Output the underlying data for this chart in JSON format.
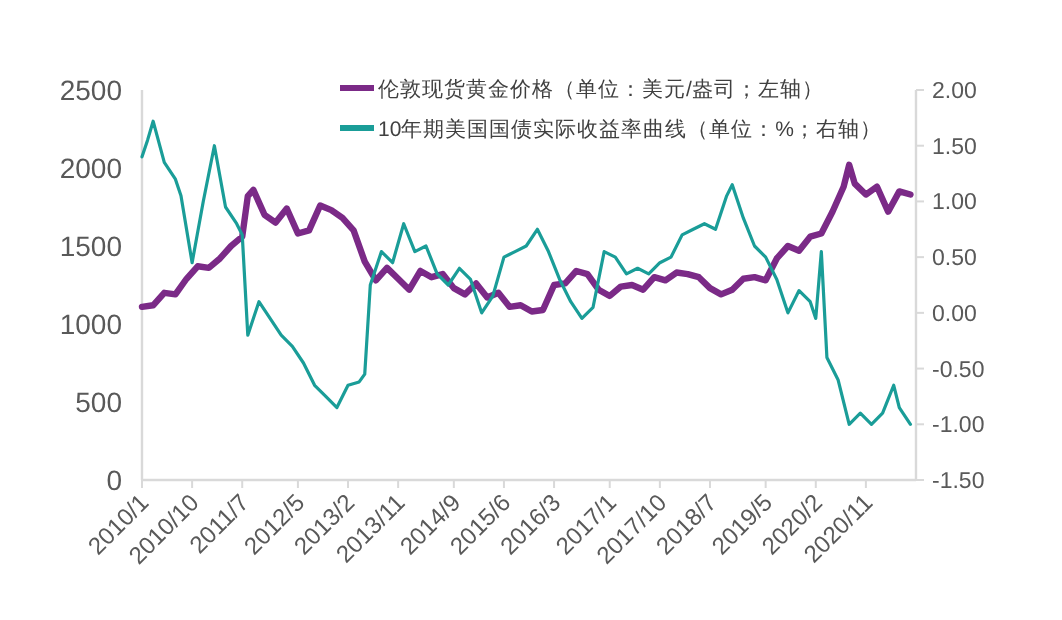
{
  "chart_data": {
    "type": "line",
    "legend": "top",
    "grid": false,
    "line_style": "solid",
    "xlim": [
      "2010-01",
      "2021-08"
    ],
    "xticks": [
      {
        "value": "2010-01",
        "label": "2010/1"
      },
      {
        "value": "2010-10",
        "label": "2010/10"
      },
      {
        "value": "2011-07",
        "label": "2011/7"
      },
      {
        "value": "2012-05",
        "label": "2012/5"
      },
      {
        "value": "2013-02",
        "label": "2013/2"
      },
      {
        "value": "2013-11",
        "label": "2013/11"
      },
      {
        "value": "2014-09",
        "label": "2014/9"
      },
      {
        "value": "2015-06",
        "label": "2015/6"
      },
      {
        "value": "2016-03",
        "label": "2016/3"
      },
      {
        "value": "2017-01",
        "label": "2017/1"
      },
      {
        "value": "2017-10",
        "label": "2017/10"
      },
      {
        "value": "2018-07",
        "label": "2018/7"
      },
      {
        "value": "2019-05",
        "label": "2019/5"
      },
      {
        "value": "2020-02",
        "label": "2020/2"
      },
      {
        "value": "2020-11",
        "label": "2020/11"
      }
    ],
    "ylim": [
      0,
      2500
    ],
    "yticks": [
      0,
      500,
      1000,
      1500,
      2000,
      2500
    ],
    "y2lim": [
      -1.5,
      2
    ],
    "y2ticks": [
      {
        "value": -1.5,
        "label": "-1.50"
      },
      {
        "value": -1,
        "label": "-1.00"
      },
      {
        "value": -0.5,
        "label": "-0.50"
      },
      {
        "value": 0,
        "label": "0.00"
      },
      {
        "value": 0.5,
        "label": "0.50"
      },
      {
        "value": 1,
        "label": "1.00"
      },
      {
        "value": 1.5,
        "label": "1.50"
      },
      {
        "value": 2,
        "label": "2.00"
      }
    ],
    "series": [
      {
        "name": "伦敦现货黄金价格（单位：美元/盎司；左轴）",
        "color": "#7b2a87",
        "axis": "y",
        "x": [
          "2010-01",
          "2010-03",
          "2010-05",
          "2010-07",
          "2010-09",
          "2010-11",
          "2011-01",
          "2011-03",
          "2011-05",
          "2011-07",
          "2011-08",
          "2011-09",
          "2011-11",
          "2012-01",
          "2012-03",
          "2012-05",
          "2012-07",
          "2012-09",
          "2012-11",
          "2013-01",
          "2013-03",
          "2013-05",
          "2013-07",
          "2013-09",
          "2013-11",
          "2014-01",
          "2014-03",
          "2014-05",
          "2014-07",
          "2014-09",
          "2014-11",
          "2015-01",
          "2015-03",
          "2015-05",
          "2015-07",
          "2015-09",
          "2015-11",
          "2016-01",
          "2016-03",
          "2016-05",
          "2016-07",
          "2016-09",
          "2016-11",
          "2017-01",
          "2017-03",
          "2017-05",
          "2017-07",
          "2017-09",
          "2017-11",
          "2018-01",
          "2018-03",
          "2018-05",
          "2018-07",
          "2018-09",
          "2018-11",
          "2019-01",
          "2019-03",
          "2019-05",
          "2019-07",
          "2019-09",
          "2019-11",
          "2020-01",
          "2020-03",
          "2020-05",
          "2020-07",
          "2020-08",
          "2020-09",
          "2020-11",
          "2021-01",
          "2021-03",
          "2021-05",
          "2021-07"
        ],
        "values": [
          1110,
          1120,
          1200,
          1190,
          1290,
          1370,
          1360,
          1420,
          1500,
          1560,
          1820,
          1860,
          1700,
          1650,
          1740,
          1580,
          1600,
          1760,
          1730,
          1680,
          1600,
          1400,
          1280,
          1360,
          1290,
          1220,
          1340,
          1300,
          1320,
          1230,
          1190,
          1260,
          1170,
          1200,
          1110,
          1120,
          1080,
          1090,
          1250,
          1260,
          1340,
          1320,
          1220,
          1180,
          1240,
          1250,
          1220,
          1300,
          1280,
          1330,
          1320,
          1300,
          1230,
          1190,
          1220,
          1290,
          1300,
          1280,
          1420,
          1500,
          1470,
          1560,
          1580,
          1720,
          1880,
          2020,
          1900,
          1830,
          1880,
          1720,
          1850,
          1830
        ]
      },
      {
        "name": "10年期美国国债实际收益率曲线（单位：%；右轴）",
        "color": "#1a9d98",
        "axis": "y2",
        "x": [
          "2010-01",
          "2010-02",
          "2010-03",
          "2010-05",
          "2010-07",
          "2010-08",
          "2010-10",
          "2010-12",
          "2011-02",
          "2011-04",
          "2011-06",
          "2011-07",
          "2011-08",
          "2011-10",
          "2011-12",
          "2012-02",
          "2012-04",
          "2012-06",
          "2012-08",
          "2012-10",
          "2012-12",
          "2013-02",
          "2013-04",
          "2013-05",
          "2013-06",
          "2013-08",
          "2013-10",
          "2013-12",
          "2014-02",
          "2014-04",
          "2014-06",
          "2014-08",
          "2014-10",
          "2014-12",
          "2015-02",
          "2015-04",
          "2015-06",
          "2015-08",
          "2015-10",
          "2015-12",
          "2016-02",
          "2016-04",
          "2016-06",
          "2016-08",
          "2016-10",
          "2016-12",
          "2017-02",
          "2017-04",
          "2017-06",
          "2017-08",
          "2017-10",
          "2017-12",
          "2018-02",
          "2018-04",
          "2018-06",
          "2018-08",
          "2018-10",
          "2018-11",
          "2019-01",
          "2019-03",
          "2019-05",
          "2019-07",
          "2019-09",
          "2019-11",
          "2020-01",
          "2020-02",
          "2020-03",
          "2020-04",
          "2020-06",
          "2020-08",
          "2020-10",
          "2020-12",
          "2021-02",
          "2021-04",
          "2021-05",
          "2021-07"
        ],
        "values": [
          1.4,
          1.55,
          1.72,
          1.35,
          1.2,
          1.05,
          0.45,
          1.0,
          1.5,
          0.95,
          0.8,
          0.7,
          -0.2,
          0.1,
          -0.05,
          -0.2,
          -0.3,
          -0.45,
          -0.65,
          -0.75,
          -0.85,
          -0.65,
          -0.62,
          -0.55,
          0.25,
          0.55,
          0.45,
          0.8,
          0.55,
          0.6,
          0.35,
          0.25,
          0.4,
          0.3,
          0.0,
          0.15,
          0.5,
          0.55,
          0.6,
          0.75,
          0.55,
          0.3,
          0.1,
          -0.05,
          0.05,
          0.55,
          0.5,
          0.35,
          0.4,
          0.35,
          0.45,
          0.5,
          0.7,
          0.75,
          0.8,
          0.75,
          1.05,
          1.15,
          0.85,
          0.6,
          0.5,
          0.3,
          0.0,
          0.2,
          0.1,
          -0.05,
          0.55,
          -0.4,
          -0.6,
          -1.0,
          -0.9,
          -1.0,
          -0.9,
          -0.65,
          -0.85,
          -1.0
        ]
      }
    ]
  }
}
